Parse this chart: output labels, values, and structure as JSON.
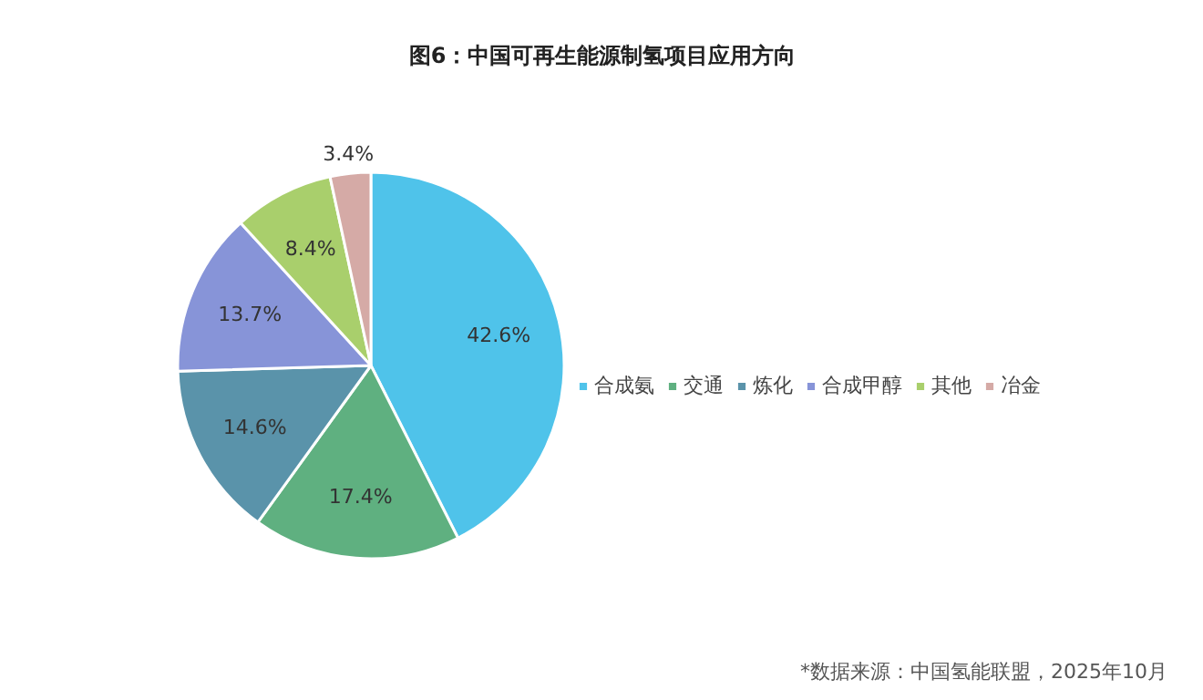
{
  "chart_data": {
    "type": "pie",
    "title": "图6：中国可再生能源制氢项目应用方向",
    "categories": [
      "合成氨",
      "交通",
      "炼化",
      "合成甲醇",
      "其他",
      "冶金"
    ],
    "values": [
      42.6,
      17.4,
      14.6,
      13.7,
      8.4,
      3.4
    ],
    "colors": [
      "#4fc3ea",
      "#5fb080",
      "#5a93aa",
      "#8794d8",
      "#a9cf6c",
      "#d5aaa6"
    ],
    "value_labels": [
      "42.6%",
      "17.4%",
      "14.6%",
      "13.7%",
      "8.4%",
      "3.4%"
    ],
    "legend": "right",
    "annotations": [
      "*数据来源：中国氢能联盟，2025年10月"
    ]
  }
}
